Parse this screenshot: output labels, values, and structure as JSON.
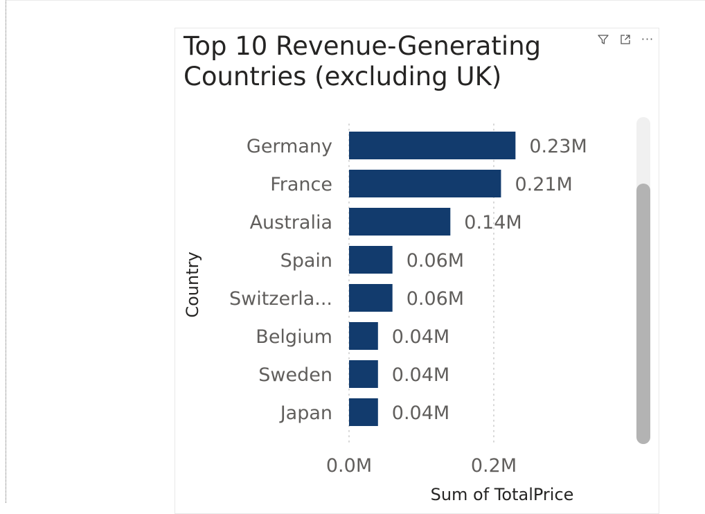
{
  "visual": {
    "title_line1": "Top 10 Revenue-Generating",
    "title_line2": "Countries (excluding UK)",
    "icons": [
      "filter-icon",
      "focus-mode-icon",
      "more-options-icon"
    ]
  },
  "chart_data": {
    "type": "bar",
    "orientation": "horizontal",
    "title": "Top 10 Revenue-Generating Countries (excluding UK)",
    "xlabel": "Sum of TotalPrice",
    "ylabel": "Country",
    "categories": [
      "Germany",
      "France",
      "Australia",
      "Spain",
      "Switzerla...",
      "Belgium",
      "Sweden",
      "Japan"
    ],
    "values": [
      0.23,
      0.21,
      0.14,
      0.06,
      0.06,
      0.04,
      0.04,
      0.04
    ],
    "data_labels": [
      "0.23M",
      "0.21M",
      "0.14M",
      "0.06M",
      "0.06M",
      "0.04M",
      "0.04M",
      "0.04M"
    ],
    "x_ticks": [
      {
        "value": 0,
        "label": "0.0M"
      },
      {
        "value": 0.2,
        "label": "0.2M"
      }
    ],
    "xlim": [
      0,
      0.2
    ],
    "grid": true,
    "bar_color": "#123b6d"
  }
}
